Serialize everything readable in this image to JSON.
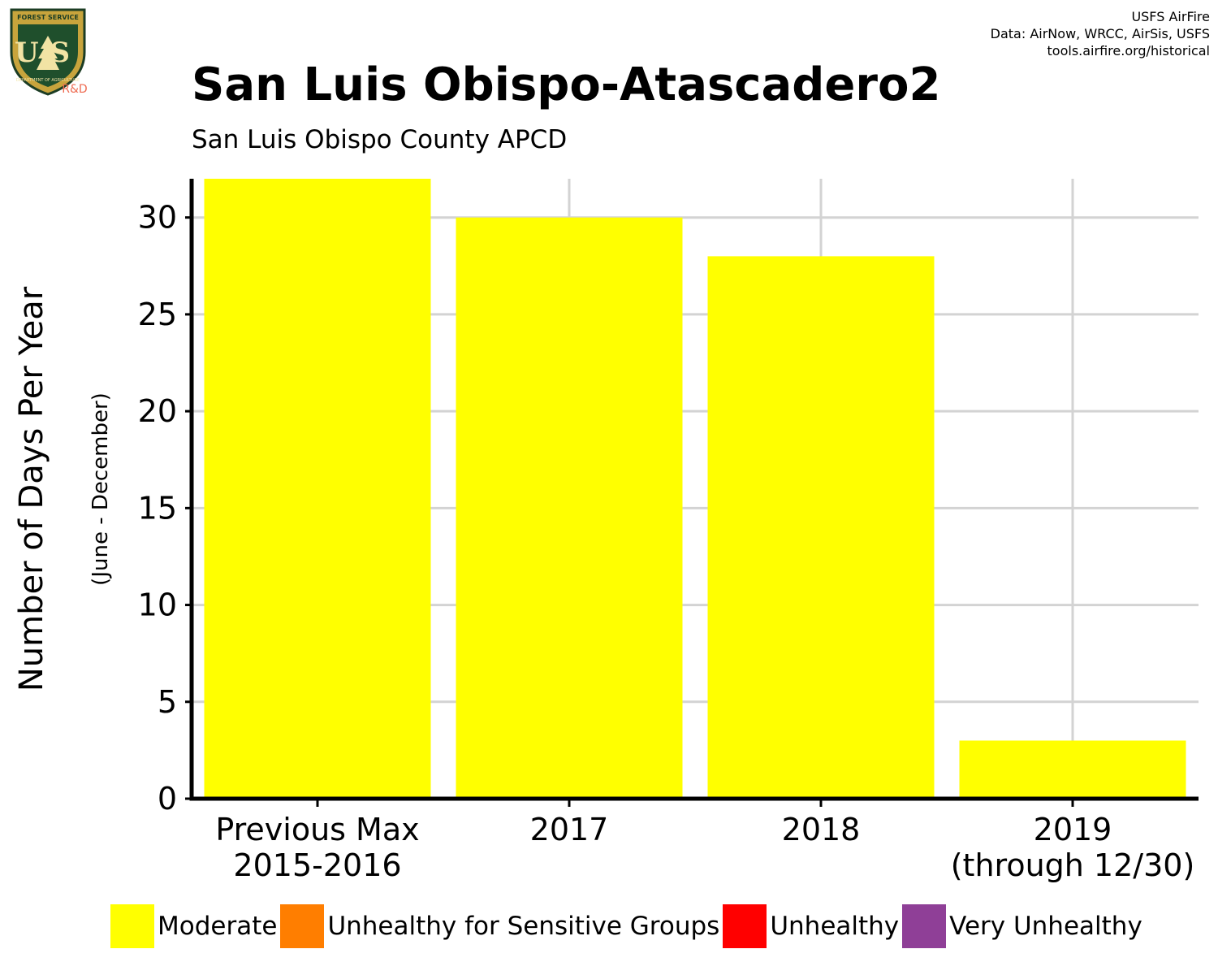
{
  "branding": {
    "logo_text": "US",
    "logo_top_text": "FOREST SERVICE",
    "logo_bottom_text": "DEPARTMENT OF AGRICULTURE",
    "logo_rd": "R&D"
  },
  "credits": {
    "line1": "USFS AirFire",
    "line2": "Data: AirNow, WRCC, AirSis, USFS",
    "line3": "tools.airfire.org/historical"
  },
  "chart_data": {
    "type": "bar",
    "title": "San Luis Obispo-Atascadero2",
    "subtitle": "San Luis Obispo County APCD",
    "ylabel": "Number of Days Per Year",
    "ylabel_sub": "(June - December)",
    "xlabel": "",
    "categories": [
      [
        "Previous Max",
        "2015-2016"
      ],
      [
        "2017"
      ],
      [
        "2018"
      ],
      [
        "2019",
        "(through 12/30)"
      ]
    ],
    "series": [
      {
        "name": "Moderate",
        "color": "#FFFF00",
        "values": [
          32,
          30,
          28,
          3
        ]
      }
    ],
    "ylim": [
      0,
      32
    ],
    "yticks": [
      0,
      5,
      10,
      15,
      20,
      25,
      30
    ],
    "grid": true,
    "legend_position": "bottom",
    "legend": [
      {
        "label": "Moderate",
        "color": "#FFFF00"
      },
      {
        "label": "Unhealthy for Sensitive Groups",
        "color": "#FF7E00"
      },
      {
        "label": "Unhealthy",
        "color": "#FF0000"
      },
      {
        "label": "Very Unhealthy",
        "color": "#8F3F97"
      }
    ]
  }
}
